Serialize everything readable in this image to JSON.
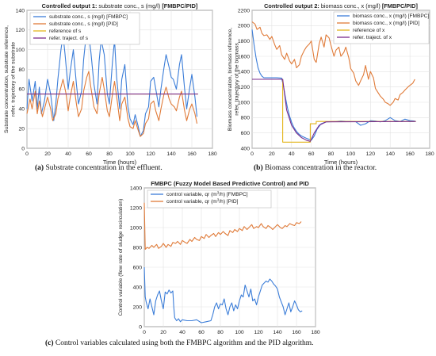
{
  "chart_data": [
    {
      "type": "line",
      "title_bold": "Controlled output 1:",
      "title_rest": " substrate conc., s (mg/l) ",
      "title_tag": "[FMBPC/PID]",
      "xlabel": "Time (hours)",
      "ylabel_lines": [
        "Substrate concentration, substrate reference,",
        "refer. trajectory of the substrate"
      ],
      "xlim": [
        0,
        180
      ],
      "ylim": [
        0,
        140
      ],
      "xticks": [
        0,
        20,
        40,
        60,
        80,
        100,
        120,
        140,
        160,
        180
      ],
      "yticks": [
        0,
        20,
        40,
        60,
        80,
        100,
        120,
        140
      ],
      "grid": true,
      "legend_position": "top-left",
      "series": [
        {
          "name": "substrate conc., s (mg/l) [FMBPC]",
          "color": "#3b7dd8",
          "x": [
            0,
            2,
            5,
            8,
            10,
            12,
            14,
            17,
            20,
            23,
            26,
            28,
            30,
            33,
            35,
            37,
            40,
            42,
            45,
            48,
            50,
            53,
            55,
            57,
            60,
            62,
            65,
            68,
            70,
            72,
            75,
            78,
            80,
            83,
            85,
            87,
            90,
            92,
            95,
            98,
            100,
            103,
            105,
            108,
            110,
            113,
            115,
            118,
            120,
            123,
            125,
            128,
            130,
            133,
            135,
            138,
            140,
            142,
            145,
            148,
            150,
            153,
            155,
            158,
            160,
            163,
            165
          ],
          "y": [
            40,
            70,
            48,
            68,
            40,
            62,
            35,
            48,
            70,
            55,
            28,
            45,
            70,
            100,
            115,
            95,
            60,
            78,
            100,
            65,
            45,
            58,
            90,
            110,
            115,
            98,
            65,
            45,
            88,
            110,
            95,
            55,
            45,
            88,
            110,
            72,
            40,
            70,
            85,
            42,
            30,
            24,
            34,
            22,
            12,
            18,
            35,
            42,
            68,
            72,
            60,
            42,
            60,
            82,
            95,
            82,
            72,
            70,
            60,
            85,
            95,
            60,
            40,
            62,
            75,
            52,
            32
          ]
        },
        {
          "name": "substrate conc., s (mg/l) [PID]",
          "color": "#e07b39",
          "x": [
            0,
            3,
            5,
            8,
            10,
            12,
            15,
            17,
            20,
            23,
            25,
            28,
            30,
            33,
            35,
            38,
            40,
            42,
            45,
            48,
            50,
            53,
            55,
            58,
            60,
            62,
            65,
            68,
            70,
            73,
            75,
            78,
            80,
            83,
            85,
            88,
            90,
            92,
            95,
            98,
            100,
            103,
            105,
            108,
            110,
            113,
            115,
            118,
            120,
            123,
            125,
            128,
            130,
            133,
            135,
            138,
            140,
            143,
            145,
            148,
            150,
            153,
            155,
            158,
            160,
            163,
            165
          ],
          "y": [
            35,
            50,
            40,
            58,
            35,
            48,
            32,
            40,
            52,
            40,
            28,
            35,
            50,
            62,
            70,
            55,
            38,
            52,
            68,
            45,
            32,
            40,
            58,
            72,
            78,
            62,
            42,
            35,
            55,
            72,
            60,
            38,
            32,
            55,
            68,
            45,
            28,
            45,
            52,
            30,
            22,
            20,
            28,
            18,
            12,
            15,
            25,
            30,
            45,
            48,
            38,
            28,
            40,
            55,
            62,
            50,
            45,
            42,
            38,
            52,
            58,
            38,
            28,
            40,
            45,
            35,
            25
          ]
        },
        {
          "name": "reference of s",
          "color": "#e3b51c",
          "x": [
            0,
            166
          ],
          "y": [
            55,
            55
          ]
        },
        {
          "name": "refer. traject. of s",
          "color": "#7b2d8c",
          "x": [
            0,
            166
          ],
          "y": [
            55,
            55
          ]
        }
      ]
    },
    {
      "type": "line",
      "title_bold": "Controlled output 2:",
      "title_rest": " biomass conc., x (mg/l) ",
      "title_tag": "[FMBPC/PID]",
      "xlabel": "Time (hours)",
      "ylabel_lines": [
        "Biomass concentration, biomass reference,",
        "refer. trajectory of the biomass"
      ],
      "xlim": [
        0,
        180
      ],
      "ylim": [
        400,
        2200
      ],
      "xticks": [
        0,
        20,
        40,
        60,
        80,
        100,
        120,
        140,
        160,
        180
      ],
      "yticks": [
        400,
        600,
        800,
        1000,
        1200,
        1400,
        1600,
        1800,
        2000,
        2200
      ],
      "grid": true,
      "legend_position": "top-right",
      "series": [
        {
          "name": "biomass conc., x (mg/l) [FMBPC]",
          "color": "#3b7dd8",
          "x": [
            0,
            2,
            4,
            6,
            8,
            10,
            12,
            15,
            20,
            25,
            30,
            32,
            34,
            36,
            38,
            40,
            42,
            45,
            48,
            50,
            55,
            60,
            63,
            66,
            70,
            75,
            80,
            85,
            90,
            95,
            100,
            105,
            110,
            115,
            120,
            125,
            130,
            135,
            140,
            145,
            150,
            155,
            160,
            165
          ],
          "y": [
            1950,
            1750,
            1580,
            1450,
            1380,
            1340,
            1320,
            1320,
            1320,
            1320,
            1315,
            1200,
            1050,
            920,
            820,
            740,
            680,
            620,
            580,
            560,
            530,
            505,
            560,
            650,
            720,
            745,
            748,
            750,
            755,
            752,
            750,
            748,
            700,
            720,
            760,
            755,
            745,
            760,
            800,
            760,
            750,
            780,
            760,
            755
          ]
        },
        {
          "name": "biomass conc., x (mg/l) [PID]",
          "color": "#e07b39",
          "x": [
            0,
            3,
            5,
            8,
            10,
            12,
            15,
            18,
            20,
            23,
            25,
            28,
            30,
            33,
            35,
            38,
            40,
            43,
            45,
            48,
            50,
            53,
            55,
            58,
            60,
            63,
            65,
            68,
            70,
            73,
            75,
            78,
            80,
            83,
            85,
            88,
            90,
            93,
            95,
            98,
            100,
            103,
            105,
            108,
            110,
            113,
            115,
            118,
            120,
            123,
            125,
            128,
            130,
            133,
            135,
            138,
            140,
            143,
            145,
            148,
            150,
            153,
            155,
            158,
            160,
            163,
            165
          ],
          "y": [
            2050,
            2020,
            1950,
            1980,
            1900,
            1870,
            1880,
            1820,
            1860,
            1750,
            1690,
            1740,
            1620,
            1560,
            1640,
            1540,
            1500,
            1560,
            1450,
            1490,
            1600,
            1680,
            1720,
            1760,
            1800,
            1560,
            1520,
            1760,
            1850,
            1720,
            1880,
            1840,
            1740,
            1600,
            1680,
            1720,
            1600,
            1650,
            1720,
            1580,
            1440,
            1380,
            1280,
            1220,
            1280,
            1360,
            1480,
            1300,
            1400,
            1320,
            1180,
            1120,
            1080,
            1040,
            1000,
            980,
            960,
            1000,
            1050,
            1030,
            1100,
            1130,
            1160,
            1200,
            1220,
            1250,
            1300
          ]
        },
        {
          "name": "reference of x",
          "color": "#e3b51c",
          "x": [
            0,
            31,
            31,
            59,
            59,
            65,
            65,
            166
          ],
          "y": [
            1300,
            1300,
            480,
            480,
            720,
            720,
            750,
            750
          ]
        },
        {
          "name": "refer. traject. of x",
          "color": "#7b2d8c",
          "x": [
            0,
            31,
            35,
            40,
            45,
            50,
            55,
            59,
            63,
            68,
            75,
            166
          ],
          "y": [
            1300,
            1300,
            900,
            700,
            600,
            540,
            505,
            490,
            600,
            700,
            745,
            750
          ]
        }
      ]
    },
    {
      "type": "line",
      "title": "FMBPC (Fuzzy Model Based Predictive Control) and PID",
      "xlabel": "",
      "ylabel_lines": [
        "Control variable (flow rate of sludge recirculation)"
      ],
      "xlim": [
        0,
        180
      ],
      "ylim": [
        0,
        1400
      ],
      "xticks": [
        0,
        20,
        40,
        60,
        80,
        100,
        120,
        140,
        160,
        180
      ],
      "yticks": [
        0,
        200,
        400,
        600,
        800,
        1000,
        1200,
        1400
      ],
      "grid": true,
      "legend_position": "top-left",
      "series": [
        {
          "name_pre": "control variable, qr (m",
          "name_sup": "3",
          "name_post": "/h) [FMBPC]",
          "color": "#3b7dd8",
          "x": [
            0,
            1,
            2,
            4,
            6,
            8,
            10,
            12,
            14,
            16,
            18,
            20,
            22,
            24,
            26,
            28,
            30,
            31,
            32,
            34,
            36,
            38,
            40,
            45,
            50,
            55,
            60,
            65,
            70,
            72,
            74,
            76,
            78,
            80,
            82,
            84,
            86,
            88,
            90,
            92,
            94,
            96,
            98,
            100,
            102,
            104,
            106,
            108,
            110,
            112,
            114,
            116,
            118,
            120,
            122,
            124,
            126,
            128,
            130,
            132,
            134,
            136,
            138,
            140,
            142,
            144,
            146,
            148,
            150,
            152,
            154,
            156,
            158,
            160,
            162,
            164,
            166
          ],
          "y": [
            600,
            300,
            250,
            180,
            280,
            200,
            120,
            260,
            320,
            360,
            260,
            180,
            350,
            330,
            370,
            340,
            360,
            200,
            90,
            60,
            80,
            50,
            70,
            60,
            60,
            70,
            40,
            50,
            60,
            120,
            200,
            240,
            180,
            230,
            220,
            280,
            180,
            120,
            200,
            240,
            160,
            220,
            180,
            260,
            320,
            300,
            420,
            360,
            300,
            380,
            260,
            280,
            220,
            300,
            360,
            420,
            440,
            460,
            450,
            480,
            460,
            430,
            410,
            380,
            300,
            250,
            200,
            120,
            180,
            240,
            150,
            200,
            260,
            220,
            170,
            150,
            160
          ]
        },
        {
          "name_pre": "control variable, qr (m",
          "name_sup": "3",
          "name_post": "/h) [PID]",
          "color": "#e07b39",
          "x": [
            0,
            1,
            3,
            5,
            8,
            10,
            13,
            15,
            18,
            20,
            23,
            25,
            28,
            30,
            33,
            35,
            38,
            40,
            43,
            45,
            48,
            50,
            53,
            55,
            58,
            60,
            63,
            65,
            68,
            70,
            73,
            75,
            78,
            80,
            83,
            85,
            88,
            90,
            93,
            95,
            98,
            100,
            103,
            105,
            108,
            110,
            113,
            115,
            118,
            120,
            123,
            125,
            128,
            130,
            133,
            135,
            138,
            140,
            143,
            145,
            148,
            150,
            153,
            155,
            158,
            160,
            163,
            165
          ],
          "y": [
            1250,
            780,
            800,
            790,
            820,
            800,
            830,
            790,
            810,
            840,
            800,
            830,
            810,
            850,
            840,
            860,
            830,
            870,
            850,
            840,
            880,
            860,
            900,
            880,
            870,
            910,
            890,
            930,
            900,
            920,
            940,
            910,
            950,
            930,
            960,
            940,
            920,
            970,
            950,
            980,
            960,
            990,
            970,
            1010,
            980,
            1000,
            1030,
            990,
            1010,
            1000,
            1040,
            1010,
            990,
            1020,
            1000,
            980,
            1010,
            1030,
            1000,
            990,
            1020,
            1010,
            1040,
            1030,
            1020,
            1050,
            1040,
            1060
          ]
        }
      ]
    }
  ],
  "captions": [
    {
      "label": "(a)",
      "text": " Substrate concentration in the effluent."
    },
    {
      "label": "(b)",
      "text": " Biomass concentration in the reactor."
    },
    {
      "label": "(c)",
      "text": " Control variables calculated using both the FMBPC algorithm and the PID algorithm."
    }
  ]
}
